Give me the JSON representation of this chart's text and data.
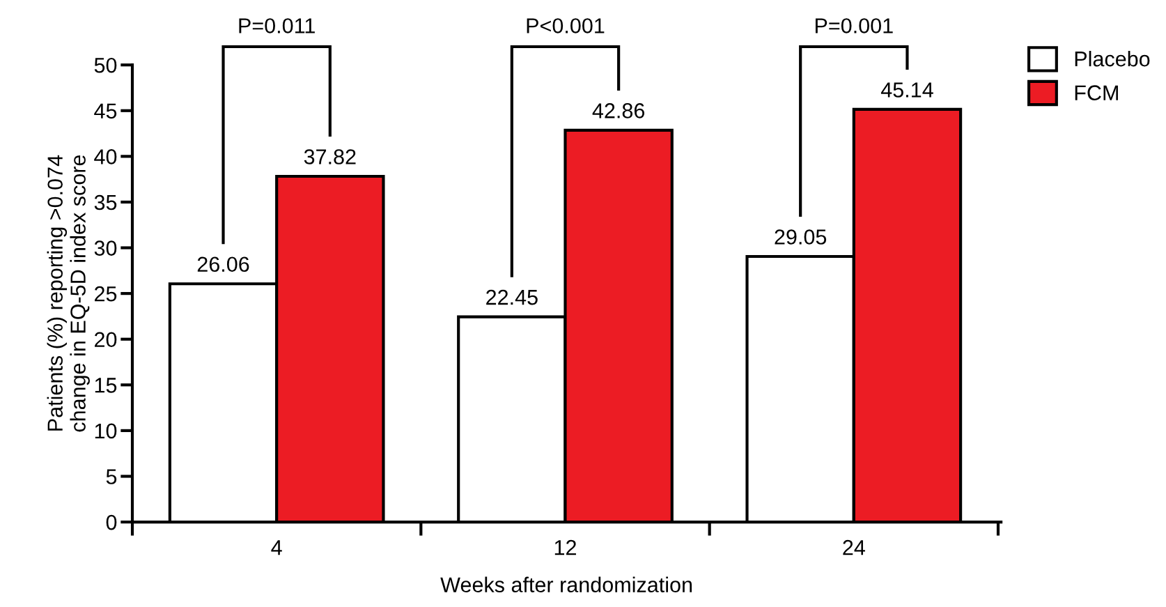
{
  "chart_data": {
    "type": "bar",
    "xlabel": "Weeks after randomization",
    "ylabel": "Patients (%) reporting >0.074\nchange in EQ-5D index score",
    "categories": [
      "4",
      "12",
      "24"
    ],
    "series": [
      {
        "name": "Placebo",
        "color": "#ffffff",
        "values": [
          26.06,
          22.45,
          29.05
        ]
      },
      {
        "name": "FCM",
        "color": "#ec1c24",
        "values": [
          37.82,
          42.86,
          45.14
        ]
      }
    ],
    "ylim": [
      0,
      50
    ],
    "yticks": [
      0,
      5,
      10,
      15,
      20,
      25,
      30,
      35,
      40,
      45,
      50
    ],
    "data_labels": true,
    "legend": "top right",
    "grid": false,
    "annotations": [
      "P=0.011",
      "P<0.001",
      "P=0.001"
    ]
  }
}
